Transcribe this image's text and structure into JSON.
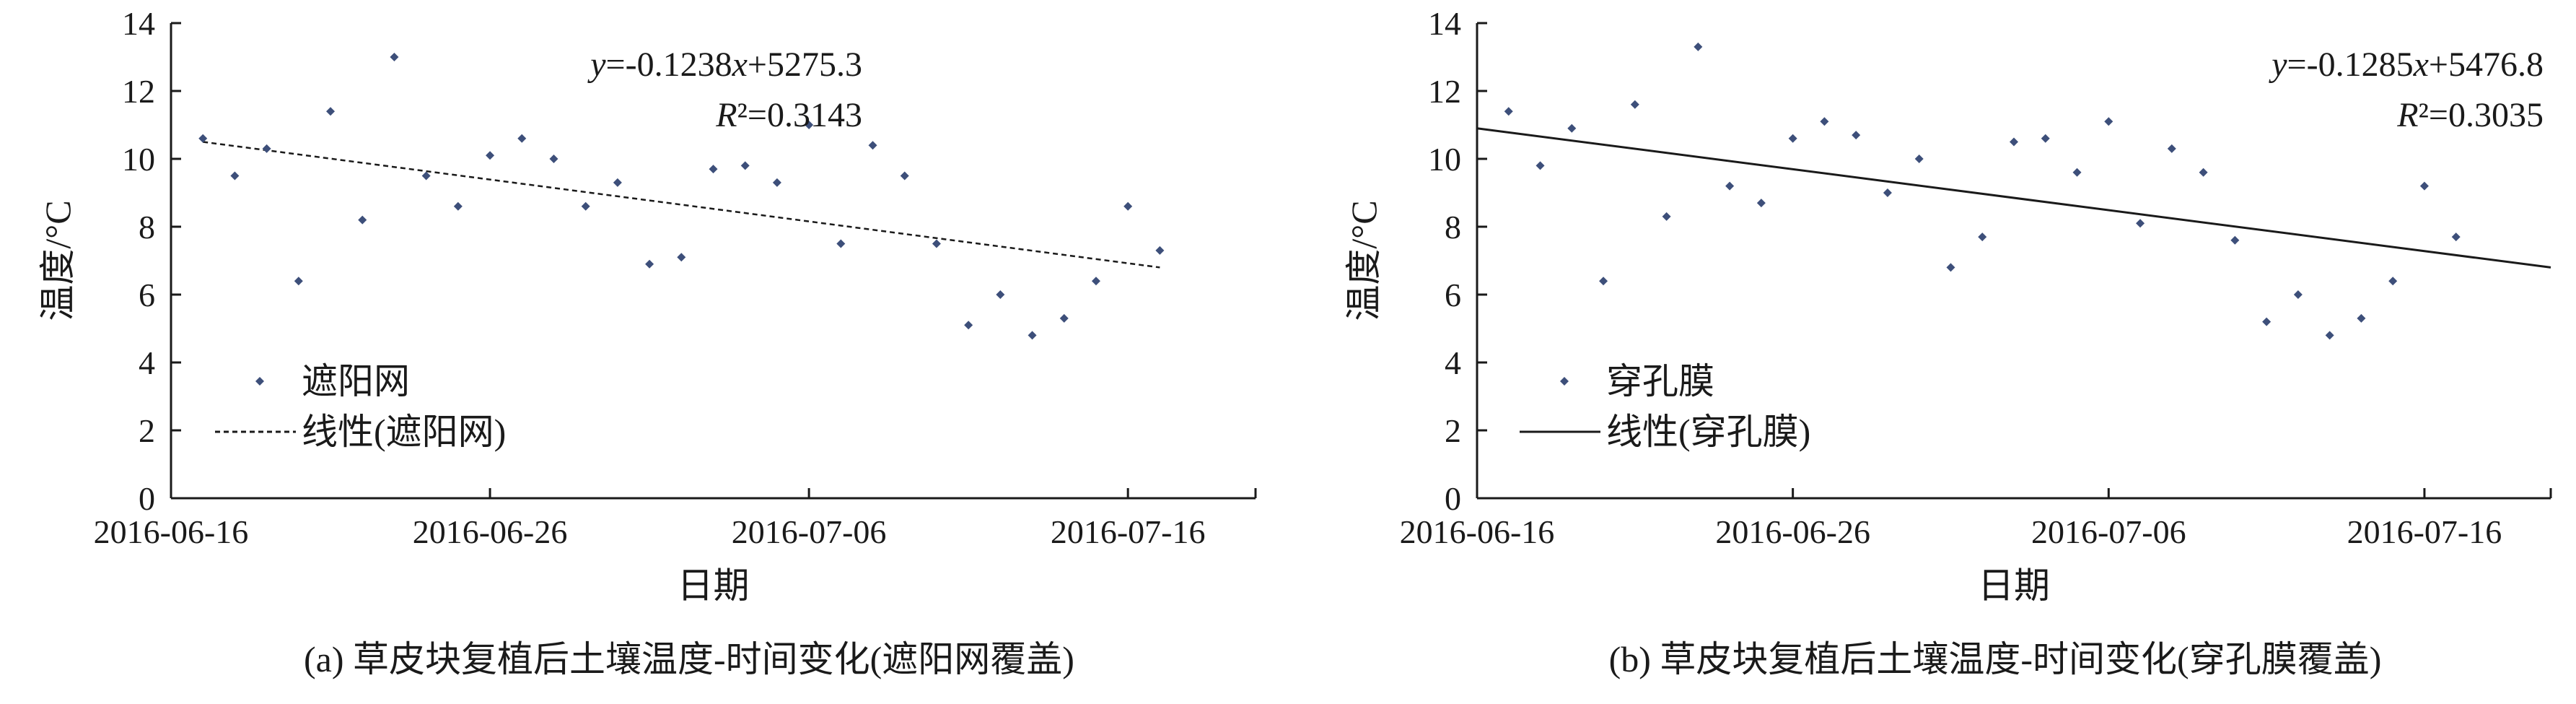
{
  "chart_data": [
    {
      "type": "scatter",
      "panel_id": "a",
      "caption": "(a) 草皮块复植后土壤温度-时间变化(遮阳网覆盖)",
      "xlabel": "日期",
      "ylabel": "温度/°C",
      "x_ticks": [
        "2016-06-16",
        "2016-06-26",
        "2016-07-06",
        "2016-07-16"
      ],
      "x_range": [
        "2016-06-16",
        "2016-07-20"
      ],
      "ylim": [
        0,
        14
      ],
      "y_ticks": [
        0,
        2,
        4,
        6,
        8,
        10,
        12,
        14
      ],
      "grid": false,
      "legend_position": "bottom-left",
      "color": "#3d4f7a",
      "series": [
        {
          "name": "遮阳网",
          "kind": "scatter",
          "points": [
            {
              "x": "2016-06-17",
              "y": 10.6
            },
            {
              "x": "2016-06-18",
              "y": 9.5
            },
            {
              "x": "2016-06-19",
              "y": 10.3
            },
            {
              "x": "2016-06-20",
              "y": 6.4
            },
            {
              "x": "2016-06-21",
              "y": 11.4
            },
            {
              "x": "2016-06-22",
              "y": 8.2
            },
            {
              "x": "2016-06-23",
              "y": 13.0
            },
            {
              "x": "2016-06-24",
              "y": 9.5
            },
            {
              "x": "2016-06-25",
              "y": 8.6
            },
            {
              "x": "2016-06-26",
              "y": 10.1
            },
            {
              "x": "2016-06-27",
              "y": 10.6
            },
            {
              "x": "2016-06-28",
              "y": 10.0
            },
            {
              "x": "2016-06-29",
              "y": 8.6
            },
            {
              "x": "2016-06-30",
              "y": 9.3
            },
            {
              "x": "2016-07-01",
              "y": 6.9
            },
            {
              "x": "2016-07-02",
              "y": 7.1
            },
            {
              "x": "2016-07-03",
              "y": 9.7
            },
            {
              "x": "2016-07-04",
              "y": 9.8
            },
            {
              "x": "2016-07-05",
              "y": 9.3
            },
            {
              "x": "2016-07-06",
              "y": 11.0
            },
            {
              "x": "2016-07-07",
              "y": 7.5
            },
            {
              "x": "2016-07-08",
              "y": 10.4
            },
            {
              "x": "2016-07-09",
              "y": 9.5
            },
            {
              "x": "2016-07-10",
              "y": 7.5
            },
            {
              "x": "2016-07-11",
              "y": 5.1
            },
            {
              "x": "2016-07-12",
              "y": 6.0
            },
            {
              "x": "2016-07-13",
              "y": 4.8
            },
            {
              "x": "2016-07-14",
              "y": 5.3
            },
            {
              "x": "2016-07-15",
              "y": 6.4
            },
            {
              "x": "2016-07-16",
              "y": 8.6
            },
            {
              "x": "2016-07-17",
              "y": 7.3
            }
          ]
        },
        {
          "name": "线性(遮阳网)",
          "kind": "trendline",
          "line_style": "dashed",
          "points": [
            {
              "x": "2016-06-17",
              "y": 10.5
            },
            {
              "x": "2016-07-17",
              "y": 6.8
            }
          ]
        }
      ],
      "annotation": {
        "equation": "y=-0.1238x+5275.3",
        "r2": "R²=0.3143"
      }
    },
    {
      "type": "scatter",
      "panel_id": "b",
      "caption": "(b) 草皮块复植后土壤温度-时间变化(穿孔膜覆盖)",
      "xlabel": "日期",
      "ylabel": "温度/°C",
      "x_ticks": [
        "2016-06-16",
        "2016-06-26",
        "2016-07-06",
        "2016-07-16"
      ],
      "x_range": [
        "2016-06-16",
        "2016-07-20"
      ],
      "ylim": [
        0,
        14
      ],
      "y_ticks": [
        0,
        2,
        4,
        6,
        8,
        10,
        12,
        14
      ],
      "grid": false,
      "legend_position": "bottom-left",
      "color": "#3d4f7a",
      "series": [
        {
          "name": "穿孔膜",
          "kind": "scatter",
          "points": [
            {
              "x": "2016-06-17",
              "y": 11.4
            },
            {
              "x": "2016-06-18",
              "y": 9.8
            },
            {
              "x": "2016-06-19",
              "y": 10.9
            },
            {
              "x": "2016-06-20",
              "y": 6.4
            },
            {
              "x": "2016-06-21",
              "y": 11.6
            },
            {
              "x": "2016-06-22",
              "y": 8.3
            },
            {
              "x": "2016-06-23",
              "y": 13.3
            },
            {
              "x": "2016-06-24",
              "y": 9.2
            },
            {
              "x": "2016-06-25",
              "y": 8.7
            },
            {
              "x": "2016-06-26",
              "y": 10.6
            },
            {
              "x": "2016-06-27",
              "y": 11.1
            },
            {
              "x": "2016-06-28",
              "y": 10.7
            },
            {
              "x": "2016-06-29",
              "y": 9.0
            },
            {
              "x": "2016-06-30",
              "y": 10.0
            },
            {
              "x": "2016-07-01",
              "y": 6.8
            },
            {
              "x": "2016-07-02",
              "y": 7.7
            },
            {
              "x": "2016-07-03",
              "y": 10.5
            },
            {
              "x": "2016-07-04",
              "y": 10.6
            },
            {
              "x": "2016-07-05",
              "y": 9.6
            },
            {
              "x": "2016-07-06",
              "y": 11.1
            },
            {
              "x": "2016-07-07",
              "y": 8.1
            },
            {
              "x": "2016-07-08",
              "y": 10.3
            },
            {
              "x": "2016-07-09",
              "y": 9.6
            },
            {
              "x": "2016-07-10",
              "y": 7.6
            },
            {
              "x": "2016-07-11",
              "y": 5.2
            },
            {
              "x": "2016-07-12",
              "y": 6.0
            },
            {
              "x": "2016-07-13",
              "y": 4.8
            },
            {
              "x": "2016-07-14",
              "y": 5.3
            },
            {
              "x": "2016-07-15",
              "y": 6.4
            },
            {
              "x": "2016-07-16",
              "y": 9.2
            },
            {
              "x": "2016-07-17",
              "y": 7.7
            }
          ]
        },
        {
          "name": "线性(穿孔膜)",
          "kind": "trendline",
          "line_style": "solid",
          "points": [
            {
              "x": "2016-06-16",
              "y": 10.9
            },
            {
              "x": "2016-07-20",
              "y": 6.8
            }
          ]
        }
      ],
      "annotation": {
        "equation": "y=-0.1285x+5476.8",
        "r2": "R²=0.3035"
      }
    }
  ]
}
